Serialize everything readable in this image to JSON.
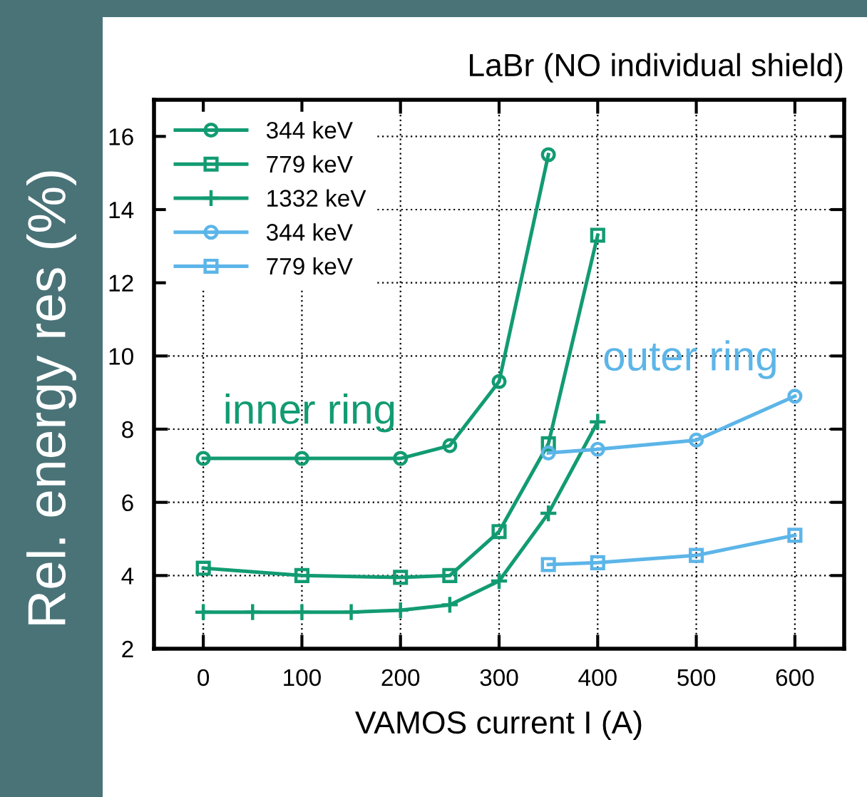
{
  "chart_data": {
    "type": "line",
    "title": "LaBr (NO individual shield)",
    "xlabel": "VAMOS current I (A)",
    "ylabel": "Rel. energy res (%)",
    "xlim": [
      -50,
      650
    ],
    "xticks": [
      0,
      100,
      200,
      300,
      400,
      500,
      600
    ],
    "ylim": [
      2,
      17
    ],
    "yticks": [
      2,
      4,
      6,
      8,
      10,
      12,
      14,
      16
    ],
    "grid": true,
    "legend": "top left",
    "line_style": "solid",
    "annotations": [
      "inner ring",
      "outer ring"
    ],
    "series": [
      {
        "name": "344 keV",
        "color": "#129b72",
        "marker": "circle",
        "x": [
          0,
          100,
          200,
          250,
          300,
          350
        ],
        "values": [
          7.2,
          7.2,
          7.2,
          7.55,
          9.3,
          15.5
        ]
      },
      {
        "name": "779 keV",
        "color": "#129b72",
        "marker": "square",
        "x": [
          0,
          100,
          200,
          250,
          300,
          350,
          400
        ],
        "values": [
          4.2,
          4.0,
          3.95,
          4.0,
          5.2,
          7.6,
          13.3
        ]
      },
      {
        "name": "1332 keV",
        "color": "#129b72",
        "marker": "cross",
        "x": [
          0,
          50,
          100,
          150,
          200,
          250,
          300,
          350,
          400
        ],
        "values": [
          3.0,
          3.0,
          3.0,
          3.0,
          3.05,
          3.2,
          3.85,
          5.7,
          8.2
        ]
      },
      {
        "name": "344 keV",
        "color": "#5cb5e8",
        "marker": "circle",
        "x": [
          350,
          400,
          500,
          600
        ],
        "values": [
          7.35,
          7.45,
          7.7,
          8.9
        ]
      },
      {
        "name": "779 keV",
        "color": "#5cb5e8",
        "marker": "square",
        "x": [
          350,
          400,
          500,
          600
        ],
        "values": [
          4.3,
          4.35,
          4.55,
          5.1
        ]
      }
    ]
  }
}
